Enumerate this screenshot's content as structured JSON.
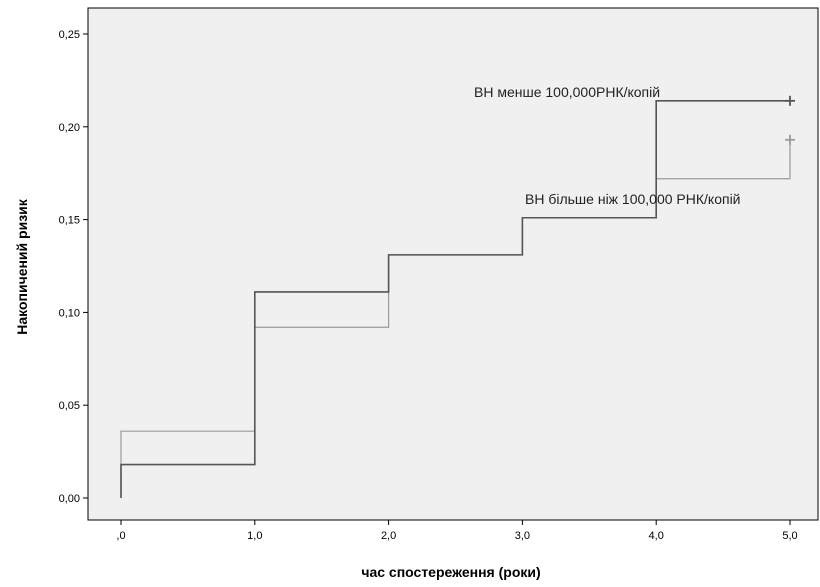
{
  "chart_data": {
    "type": "line",
    "xlabel": "час спостереження (роки)",
    "ylabel": "Накопичений ризик",
    "xlim": [
      0,
      5
    ],
    "ylim": [
      0,
      0.25
    ],
    "x_ticks": [
      0,
      1,
      2,
      3,
      4,
      5
    ],
    "x_tick_labels": [
      ",0",
      "1,0",
      "2,0",
      "3,0",
      "4,0",
      "5,0"
    ],
    "y_ticks": [
      0,
      0.05,
      0.1,
      0.15,
      0.2,
      0.25
    ],
    "y_tick_labels": [
      "0,00",
      "0,05",
      "0,10",
      "0,15",
      "0,20",
      "0,25"
    ],
    "grid": false,
    "step": true,
    "censor_marks": true,
    "series": [
      {
        "name": "ВН менше 100,000РНК/копій",
        "color": "#555555",
        "x": [
          0,
          0,
          1,
          2,
          3,
          4,
          5
        ],
        "y": [
          0,
          0.018,
          0.111,
          0.131,
          0.151,
          0.214,
          0.214
        ],
        "censored": [
          {
            "x": 5,
            "y": 0.214
          }
        ]
      },
      {
        "name": "ВН більше ніж 100,000 РНК/копій",
        "color": "#9a9a9a",
        "x": [
          0,
          0,
          1,
          2,
          3,
          4,
          5
        ],
        "y": [
          0,
          0.036,
          0.092,
          0.131,
          0.151,
          0.172,
          0.193
        ],
        "censored": [
          {
            "x": 5,
            "y": 0.193
          }
        ]
      }
    ]
  }
}
